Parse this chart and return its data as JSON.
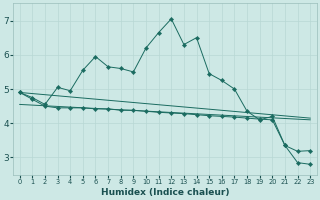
{
  "xlabel": "Humidex (Indice chaleur)",
  "background_color": "#cde8e5",
  "grid_color": "#b8d8d4",
  "line_color": "#1a6b60",
  "x": [
    0,
    1,
    2,
    3,
    4,
    5,
    6,
    7,
    8,
    9,
    10,
    11,
    12,
    13,
    14,
    15,
    16,
    17,
    18,
    19,
    20,
    21,
    22,
    23
  ],
  "line1": [
    4.9,
    4.75,
    4.55,
    5.05,
    4.95,
    5.55,
    5.95,
    5.65,
    5.6,
    5.5,
    6.2,
    6.65,
    7.05,
    6.3,
    6.5,
    5.45,
    5.25,
    5.0,
    4.35,
    4.1,
    4.2,
    3.35,
    3.18,
    3.2
  ],
  "line2": [
    4.9,
    4.7,
    4.5,
    4.45,
    4.45,
    4.45,
    4.42,
    4.42,
    4.38,
    4.38,
    4.35,
    4.32,
    4.3,
    4.28,
    4.25,
    4.22,
    4.2,
    4.18,
    4.15,
    4.12,
    4.1,
    3.35,
    2.85,
    2.8
  ],
  "trend1_x": [
    0,
    23
  ],
  "trend1_y": [
    4.9,
    4.15
  ],
  "trend2_x": [
    0,
    23
  ],
  "trend2_y": [
    4.55,
    4.1
  ],
  "ylim": [
    2.5,
    7.5
  ],
  "yticks": [
    3,
    4,
    5,
    6,
    7
  ],
  "xticks": [
    0,
    1,
    2,
    3,
    4,
    5,
    6,
    7,
    8,
    9,
    10,
    11,
    12,
    13,
    14,
    15,
    16,
    17,
    18,
    19,
    20,
    21,
    22,
    23
  ],
  "markersize": 2.2,
  "linewidth": 0.7,
  "xlabel_fontsize": 6.5,
  "tick_fontsize_x": 4.8,
  "tick_fontsize_y": 6.5
}
